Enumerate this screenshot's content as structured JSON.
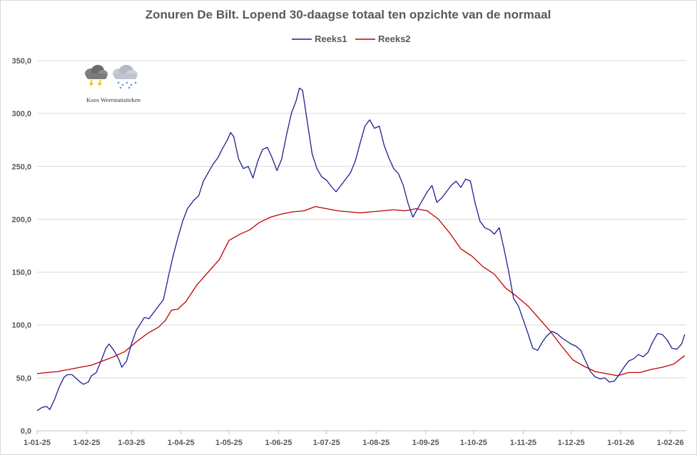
{
  "chart_data": {
    "type": "line",
    "title": "Zonuren De Bilt. Lopend 30-daagse totaal ten opzichte van de normaal",
    "xlabel": "",
    "ylabel": "",
    "ylim": [
      0,
      350
    ],
    "yticks": [
      0,
      50,
      100,
      150,
      200,
      250,
      300,
      350
    ],
    "ytick_labels": [
      "0,0",
      "50,0",
      "100,0",
      "150,0",
      "200,0",
      "250,0",
      "300,0",
      "350,0"
    ],
    "x_start": "2025-01-01",
    "x_end": "2026-02-11",
    "xtick_dates": [
      "2025-01-01",
      "2025-02-01",
      "2025-03-01",
      "2025-04-01",
      "2025-05-01",
      "2025-06-01",
      "2025-07-01",
      "2025-08-01",
      "2025-09-01",
      "2025-10-01",
      "2025-11-01",
      "2025-12-01",
      "2026-01-01",
      "2026-02-01"
    ],
    "xtick_labels": [
      "1-01-25",
      "1-02-25",
      "1-03-25",
      "1-04-25",
      "1-05-25",
      "1-06-25",
      "1-07-25",
      "1-08-25",
      "1-09-25",
      "1-10-25",
      "1-11-25",
      "1-12-25",
      "1-01-26",
      "1-02-26"
    ],
    "grid": "horizontal",
    "legend_position": "top",
    "series": [
      {
        "name": "Reeks1",
        "color": "#1f1f8f",
        "points": [
          [
            "2025-01-01",
            19
          ],
          [
            "2025-01-04",
            22
          ],
          [
            "2025-01-07",
            23
          ],
          [
            "2025-01-09",
            20
          ],
          [
            "2025-01-12",
            30
          ],
          [
            "2025-01-15",
            42
          ],
          [
            "2025-01-18",
            51
          ],
          [
            "2025-01-20",
            53
          ],
          [
            "2025-01-23",
            53
          ],
          [
            "2025-01-25",
            50
          ],
          [
            "2025-01-28",
            46
          ],
          [
            "2025-01-30",
            44
          ],
          [
            "2025-02-02",
            46
          ],
          [
            "2025-02-04",
            52
          ],
          [
            "2025-02-07",
            55
          ],
          [
            "2025-02-10",
            66
          ],
          [
            "2025-02-13",
            78
          ],
          [
            "2025-02-15",
            82
          ],
          [
            "2025-02-18",
            76
          ],
          [
            "2025-02-21",
            68
          ],
          [
            "2025-02-23",
            60
          ],
          [
            "2025-02-26",
            66
          ],
          [
            "2025-03-01",
            82
          ],
          [
            "2025-03-04",
            95
          ],
          [
            "2025-03-07",
            102
          ],
          [
            "2025-03-09",
            107
          ],
          [
            "2025-03-12",
            106
          ],
          [
            "2025-03-15",
            112
          ],
          [
            "2025-03-18",
            118
          ],
          [
            "2025-03-21",
            124
          ],
          [
            "2025-03-24",
            145
          ],
          [
            "2025-03-27",
            165
          ],
          [
            "2025-03-30",
            182
          ],
          [
            "2025-04-02",
            198
          ],
          [
            "2025-04-05",
            210
          ],
          [
            "2025-04-09",
            218
          ],
          [
            "2025-04-12",
            222
          ],
          [
            "2025-04-15",
            236
          ],
          [
            "2025-04-18",
            244
          ],
          [
            "2025-04-21",
            252
          ],
          [
            "2025-04-24",
            258
          ],
          [
            "2025-04-27",
            267
          ],
          [
            "2025-04-30",
            275
          ],
          [
            "2025-05-02",
            282
          ],
          [
            "2025-05-04",
            278
          ],
          [
            "2025-05-07",
            257
          ],
          [
            "2025-05-10",
            248
          ],
          [
            "2025-05-13",
            250
          ],
          [
            "2025-05-16",
            239
          ],
          [
            "2025-05-19",
            255
          ],
          [
            "2025-05-22",
            266
          ],
          [
            "2025-05-25",
            268
          ],
          [
            "2025-05-28",
            258
          ],
          [
            "2025-05-31",
            246
          ],
          [
            "2025-06-03",
            257
          ],
          [
            "2025-06-06",
            280
          ],
          [
            "2025-06-09",
            300
          ],
          [
            "2025-06-12",
            312
          ],
          [
            "2025-06-14",
            324
          ],
          [
            "2025-06-16",
            322
          ],
          [
            "2025-06-19",
            292
          ],
          [
            "2025-06-22",
            262
          ],
          [
            "2025-06-25",
            248
          ],
          [
            "2025-06-28",
            240
          ],
          [
            "2025-07-01",
            237
          ],
          [
            "2025-07-04",
            231
          ],
          [
            "2025-07-07",
            226
          ],
          [
            "2025-07-10",
            232
          ],
          [
            "2025-07-13",
            238
          ],
          [
            "2025-07-16",
            244
          ],
          [
            "2025-07-19",
            255
          ],
          [
            "2025-07-22",
            272
          ],
          [
            "2025-07-25",
            288
          ],
          [
            "2025-07-28",
            294
          ],
          [
            "2025-07-31",
            286
          ],
          [
            "2025-08-03",
            288
          ],
          [
            "2025-08-06",
            270
          ],
          [
            "2025-08-09",
            258
          ],
          [
            "2025-08-12",
            248
          ],
          [
            "2025-08-15",
            243
          ],
          [
            "2025-08-18",
            232
          ],
          [
            "2025-08-21",
            215
          ],
          [
            "2025-08-24",
            202
          ],
          [
            "2025-08-27",
            210
          ],
          [
            "2025-08-30",
            218
          ],
          [
            "2025-09-02",
            226
          ],
          [
            "2025-09-05",
            232
          ],
          [
            "2025-09-08",
            216
          ],
          [
            "2025-09-11",
            220
          ],
          [
            "2025-09-14",
            226
          ],
          [
            "2025-09-17",
            232
          ],
          [
            "2025-09-20",
            236
          ],
          [
            "2025-09-23",
            230
          ],
          [
            "2025-09-26",
            238
          ],
          [
            "2025-09-29",
            236
          ],
          [
            "2025-10-02",
            215
          ],
          [
            "2025-10-05",
            198
          ],
          [
            "2025-10-08",
            192
          ],
          [
            "2025-10-11",
            190
          ],
          [
            "2025-10-14",
            186
          ],
          [
            "2025-10-17",
            192
          ],
          [
            "2025-10-20",
            172
          ],
          [
            "2025-10-23",
            150
          ],
          [
            "2025-10-26",
            125
          ],
          [
            "2025-10-29",
            118
          ],
          [
            "2025-11-01",
            105
          ],
          [
            "2025-11-04",
            92
          ],
          [
            "2025-11-07",
            78
          ],
          [
            "2025-11-10",
            76
          ],
          [
            "2025-11-13",
            84
          ],
          [
            "2025-11-16",
            90
          ],
          [
            "2025-11-19",
            94
          ],
          [
            "2025-11-22",
            92
          ],
          [
            "2025-11-25",
            88
          ],
          [
            "2025-11-28",
            85
          ],
          [
            "2025-12-01",
            82
          ],
          [
            "2025-12-04",
            80
          ],
          [
            "2025-12-07",
            76
          ],
          [
            "2025-12-10",
            66
          ],
          [
            "2025-12-13",
            56
          ],
          [
            "2025-12-16",
            51
          ],
          [
            "2025-12-19",
            49
          ],
          [
            "2025-12-22",
            50
          ],
          [
            "2025-12-25",
            46
          ],
          [
            "2025-12-28",
            47
          ],
          [
            "2025-12-31",
            53
          ],
          [
            "2026-01-03",
            60
          ],
          [
            "2026-01-06",
            66
          ],
          [
            "2026-01-09",
            68
          ],
          [
            "2026-01-12",
            72
          ],
          [
            "2026-01-15",
            70
          ],
          [
            "2026-01-18",
            74
          ],
          [
            "2026-01-21",
            84
          ],
          [
            "2026-01-24",
            92
          ],
          [
            "2026-01-27",
            91
          ],
          [
            "2026-01-30",
            86
          ],
          [
            "2026-02-02",
            78
          ],
          [
            "2026-02-05",
            77
          ],
          [
            "2026-02-08",
            82
          ],
          [
            "2026-02-10",
            91
          ]
        ]
      },
      {
        "name": "Reeks2",
        "color": "#c00000",
        "points": [
          [
            "2025-01-01",
            54
          ],
          [
            "2025-01-07",
            55
          ],
          [
            "2025-01-14",
            56
          ],
          [
            "2025-01-21",
            58
          ],
          [
            "2025-01-28",
            60
          ],
          [
            "2025-02-04",
            62
          ],
          [
            "2025-02-11",
            66
          ],
          [
            "2025-02-18",
            70
          ],
          [
            "2025-02-25",
            75
          ],
          [
            "2025-03-04",
            84
          ],
          [
            "2025-03-11",
            92
          ],
          [
            "2025-03-18",
            98
          ],
          [
            "2025-03-22",
            104
          ],
          [
            "2025-03-26",
            114
          ],
          [
            "2025-03-30",
            115
          ],
          [
            "2025-04-04",
            122
          ],
          [
            "2025-04-11",
            138
          ],
          [
            "2025-04-18",
            150
          ],
          [
            "2025-04-25",
            162
          ],
          [
            "2025-05-01",
            180
          ],
          [
            "2025-05-08",
            186
          ],
          [
            "2025-05-14",
            190
          ],
          [
            "2025-05-20",
            197
          ],
          [
            "2025-05-27",
            202
          ],
          [
            "2025-06-03",
            205
          ],
          [
            "2025-06-10",
            207
          ],
          [
            "2025-06-17",
            208
          ],
          [
            "2025-06-24",
            212
          ],
          [
            "2025-07-01",
            210
          ],
          [
            "2025-07-08",
            208
          ],
          [
            "2025-07-15",
            207
          ],
          [
            "2025-07-22",
            206
          ],
          [
            "2025-07-29",
            207
          ],
          [
            "2025-08-05",
            208
          ],
          [
            "2025-08-12",
            209
          ],
          [
            "2025-08-19",
            208
          ],
          [
            "2025-08-26",
            210
          ],
          [
            "2025-09-02",
            208
          ],
          [
            "2025-09-09",
            200
          ],
          [
            "2025-09-16",
            187
          ],
          [
            "2025-09-23",
            172
          ],
          [
            "2025-09-30",
            165
          ],
          [
            "2025-10-07",
            155
          ],
          [
            "2025-10-14",
            148
          ],
          [
            "2025-10-21",
            135
          ],
          [
            "2025-10-28",
            127
          ],
          [
            "2025-11-04",
            118
          ],
          [
            "2025-11-11",
            106
          ],
          [
            "2025-11-18",
            94
          ],
          [
            "2025-11-25",
            80
          ],
          [
            "2025-12-02",
            67
          ],
          [
            "2025-12-09",
            61
          ],
          [
            "2025-12-16",
            56
          ],
          [
            "2025-12-23",
            54
          ],
          [
            "2025-12-30",
            52
          ],
          [
            "2026-01-06",
            55
          ],
          [
            "2026-01-13",
            55
          ],
          [
            "2026-01-20",
            58
          ],
          [
            "2026-01-27",
            60
          ],
          [
            "2026-02-03",
            63
          ],
          [
            "2026-02-10",
            71
          ]
        ]
      }
    ]
  },
  "logo": {
    "caption": "Koos Weerstatistieken",
    "icon_left": "thunderstorm-cloud-icon",
    "icon_right": "snow-cloud-icon"
  }
}
